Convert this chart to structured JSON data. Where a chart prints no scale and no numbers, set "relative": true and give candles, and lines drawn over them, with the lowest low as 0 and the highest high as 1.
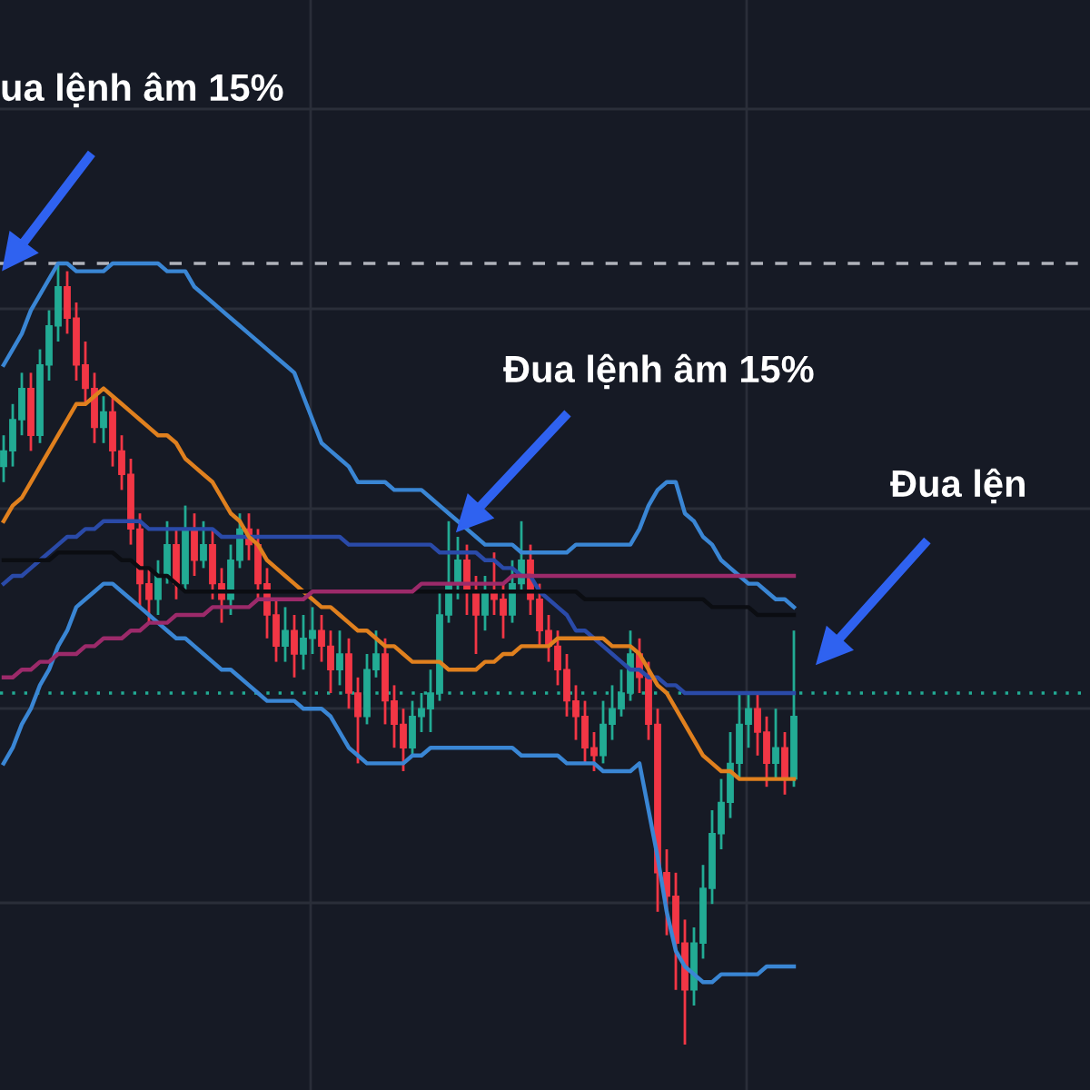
{
  "chart_data": {
    "type": "candlestick",
    "relative": true,
    "categories": [
      null,
      null,
      null,
      null,
      null,
      null,
      null,
      null,
      null,
      null,
      null,
      null,
      null,
      null,
      null,
      null,
      null,
      null,
      null,
      null,
      null,
      null,
      null,
      null,
      null,
      null,
      null,
      null,
      null,
      null,
      null,
      null,
      null,
      null,
      null,
      null,
      null,
      null,
      null,
      null,
      null,
      null,
      null,
      null,
      null,
      null,
      null,
      null,
      null,
      null,
      null,
      null,
      null,
      null,
      null,
      null,
      null,
      null,
      null,
      null,
      null,
      null,
      null,
      null,
      null,
      null,
      null,
      null,
      null,
      null,
      null,
      null,
      null,
      null,
      null,
      null,
      null,
      null,
      null,
      null,
      null,
      null,
      null,
      null,
      null,
      null,
      null,
      null
    ],
    "ohlc": [
      [
        0.74,
        0.78,
        0.72,
        0.76
      ],
      [
        0.76,
        0.82,
        0.74,
        0.8
      ],
      [
        0.8,
        0.86,
        0.78,
        0.84
      ],
      [
        0.84,
        0.86,
        0.76,
        0.78
      ],
      [
        0.78,
        0.89,
        0.77,
        0.87
      ],
      [
        0.87,
        0.94,
        0.85,
        0.92
      ],
      [
        0.92,
        1.0,
        0.9,
        0.97
      ],
      [
        0.97,
        0.99,
        0.91,
        0.93
      ],
      [
        0.93,
        0.95,
        0.85,
        0.87
      ],
      [
        0.87,
        0.9,
        0.82,
        0.84
      ],
      [
        0.84,
        0.86,
        0.77,
        0.79
      ],
      [
        0.79,
        0.83,
        0.77,
        0.81
      ],
      [
        0.81,
        0.83,
        0.74,
        0.76
      ],
      [
        0.76,
        0.78,
        0.71,
        0.73
      ],
      [
        0.73,
        0.75,
        0.64,
        0.66
      ],
      [
        0.66,
        0.68,
        0.56,
        0.59
      ],
      [
        0.59,
        0.61,
        0.54,
        0.57
      ],
      [
        0.57,
        0.62,
        0.55,
        0.6
      ],
      [
        0.6,
        0.67,
        0.59,
        0.64
      ],
      [
        0.64,
        0.66,
        0.57,
        0.59
      ],
      [
        0.59,
        0.69,
        0.58,
        0.66
      ],
      [
        0.66,
        0.68,
        0.6,
        0.62
      ],
      [
        0.62,
        0.67,
        0.61,
        0.64
      ],
      [
        0.64,
        0.66,
        0.57,
        0.59
      ],
      [
        0.59,
        0.61,
        0.54,
        0.57
      ],
      [
        0.57,
        0.64,
        0.55,
        0.62
      ],
      [
        0.62,
        0.68,
        0.61,
        0.66
      ],
      [
        0.66,
        0.68,
        0.62,
        0.64
      ],
      [
        0.64,
        0.66,
        0.57,
        0.59
      ],
      [
        0.59,
        0.61,
        0.52,
        0.55
      ],
      [
        0.55,
        0.57,
        0.49,
        0.51
      ],
      [
        0.51,
        0.56,
        0.49,
        0.53
      ],
      [
        0.53,
        0.55,
        0.47,
        0.5
      ],
      [
        0.5,
        0.55,
        0.48,
        0.52
      ],
      [
        0.52,
        0.56,
        0.5,
        0.53
      ],
      [
        0.53,
        0.55,
        0.49,
        0.51
      ],
      [
        0.51,
        0.53,
        0.45,
        0.48
      ],
      [
        0.48,
        0.53,
        0.46,
        0.5
      ],
      [
        0.5,
        0.52,
        0.43,
        0.45
      ],
      [
        0.45,
        0.47,
        0.36,
        0.42
      ],
      [
        0.42,
        0.5,
        0.41,
        0.48
      ],
      [
        0.48,
        0.53,
        0.47,
        0.5
      ],
      [
        0.5,
        0.52,
        0.41,
        0.44
      ],
      [
        0.44,
        0.46,
        0.38,
        0.41
      ],
      [
        0.41,
        0.43,
        0.35,
        0.38
      ],
      [
        0.38,
        0.44,
        0.37,
        0.42
      ],
      [
        0.42,
        0.45,
        0.4,
        0.43
      ],
      [
        0.43,
        0.48,
        0.4,
        0.45
      ],
      [
        0.45,
        0.58,
        0.44,
        0.55
      ],
      [
        0.55,
        0.67,
        0.54,
        0.59
      ],
      [
        0.59,
        0.65,
        0.57,
        0.62
      ],
      [
        0.62,
        0.64,
        0.55,
        0.58
      ],
      [
        0.58,
        0.6,
        0.5,
        0.55
      ],
      [
        0.55,
        0.6,
        0.53,
        0.58
      ],
      [
        0.58,
        0.63,
        0.55,
        0.57
      ],
      [
        0.57,
        0.59,
        0.52,
        0.55
      ],
      [
        0.55,
        0.62,
        0.54,
        0.59
      ],
      [
        0.59,
        0.67,
        0.58,
        0.62
      ],
      [
        0.62,
        0.64,
        0.55,
        0.57
      ],
      [
        0.57,
        0.59,
        0.51,
        0.53
      ],
      [
        0.53,
        0.55,
        0.49,
        0.51
      ],
      [
        0.51,
        0.53,
        0.46,
        0.48
      ],
      [
        0.48,
        0.5,
        0.42,
        0.44
      ],
      [
        0.44,
        0.46,
        0.39,
        0.42
      ],
      [
        0.42,
        0.44,
        0.36,
        0.38
      ],
      [
        0.38,
        0.4,
        0.35,
        0.37
      ],
      [
        0.37,
        0.44,
        0.36,
        0.41
      ],
      [
        0.41,
        0.46,
        0.39,
        0.43
      ],
      [
        0.43,
        0.48,
        0.42,
        0.45
      ],
      [
        0.45,
        0.53,
        0.44,
        0.5
      ],
      [
        0.5,
        0.52,
        0.45,
        0.47
      ],
      [
        0.47,
        0.49,
        0.39,
        0.41
      ],
      [
        0.41,
        0.43,
        0.17,
        0.22
      ],
      [
        0.22,
        0.25,
        0.14,
        0.19
      ],
      [
        0.19,
        0.22,
        0.07,
        0.13
      ],
      [
        0.13,
        0.16,
        0.0,
        0.07
      ],
      [
        0.07,
        0.15,
        0.05,
        0.13
      ],
      [
        0.13,
        0.23,
        0.11,
        0.2
      ],
      [
        0.2,
        0.3,
        0.18,
        0.27
      ],
      [
        0.27,
        0.34,
        0.25,
        0.31
      ],
      [
        0.31,
        0.4,
        0.29,
        0.36
      ],
      [
        0.36,
        0.45,
        0.34,
        0.41
      ],
      [
        0.41,
        0.45,
        0.38,
        0.43
      ],
      [
        0.43,
        0.45,
        0.37,
        0.4
      ],
      [
        0.4,
        0.42,
        0.33,
        0.36
      ],
      [
        0.36,
        0.43,
        0.34,
        0.38
      ],
      [
        0.38,
        0.4,
        0.32,
        0.34
      ],
      [
        0.34,
        0.53,
        0.33,
        0.42
      ]
    ],
    "colors": [
      "#22ab94",
      "#22ab94",
      "#22ab94",
      "#f23645",
      "#22ab94",
      "#22ab94",
      "#22ab94",
      "#f23645",
      "#f23645",
      "#f23645",
      "#f23645",
      "#22ab94",
      "#f23645",
      "#f23645",
      "#f23645",
      "#f23645",
      "#f23645",
      "#22ab94",
      "#22ab94",
      "#f23645",
      "#22ab94",
      "#f23645",
      "#22ab94",
      "#f23645",
      "#f23645",
      "#22ab94",
      "#22ab94",
      "#f23645",
      "#f23645",
      "#f23645",
      "#f23645",
      "#22ab94",
      "#f23645",
      "#22ab94",
      "#22ab94",
      "#f23645",
      "#f23645",
      "#22ab94",
      "#f23645",
      "#f23645",
      "#22ab94",
      "#22ab94",
      "#f23645",
      "#f23645",
      "#f23645",
      "#22ab94",
      "#22ab94",
      "#22ab94",
      "#22ab94",
      "#22ab94",
      "#22ab94",
      "#f23645",
      "#f23645",
      "#22ab94",
      "#f23645",
      "#f23645",
      "#22ab94",
      "#22ab94",
      "#f23645",
      "#f23645",
      "#f23645",
      "#f23645",
      "#f23645",
      "#f23645",
      "#f23645",
      "#f23645",
      "#22ab94",
      "#22ab94",
      "#22ab94",
      "#22ab94",
      "#f23645",
      "#f23645",
      "#f23645",
      "#f23645",
      "#f23645",
      "#f23645",
      "#22ab94",
      "#22ab94",
      "#22ab94",
      "#22ab94",
      "#22ab94",
      "#22ab94",
      "#22ab94",
      "#f23645",
      "#f23645",
      "#22ab94",
      "#f23645",
      "#22ab94"
    ],
    "series": [
      {
        "type": "line",
        "color": "#3a86d4",
        "values": [
          0.87,
          0.89,
          0.91,
          0.94,
          0.96,
          0.98,
          1.0,
          1.0,
          0.99,
          0.99,
          0.99,
          0.99,
          1.0,
          1.0,
          1.0,
          1.0,
          1.0,
          1.0,
          0.99,
          0.99,
          0.99,
          0.97,
          0.96,
          0.95,
          0.94,
          0.93,
          0.92,
          0.91,
          0.9,
          0.89,
          0.88,
          0.87,
          0.86,
          0.83,
          0.8,
          0.77,
          0.76,
          0.75,
          0.74,
          0.72,
          0.72,
          0.72,
          0.72,
          0.71,
          0.71,
          0.71,
          0.71,
          0.7,
          0.69,
          0.68,
          0.67,
          0.66,
          0.65,
          0.64,
          0.64,
          0.64,
          0.64,
          0.63,
          0.63,
          0.63,
          0.63,
          0.63,
          0.63,
          0.64,
          0.64,
          0.64,
          0.64,
          0.64,
          0.64,
          0.64,
          0.66,
          0.69,
          0.71,
          0.72,
          0.72,
          0.68,
          0.67,
          0.65,
          0.64,
          0.62,
          0.61,
          0.6,
          0.59,
          0.59,
          0.58,
          0.57,
          0.57,
          0.56
        ]
      },
      {
        "type": "line",
        "color": "#3a86d4",
        "values": [
          0.36,
          0.38,
          0.41,
          0.43,
          0.46,
          0.48,
          0.51,
          0.53,
          0.56,
          0.57,
          0.58,
          0.59,
          0.59,
          0.58,
          0.57,
          0.56,
          0.55,
          0.54,
          0.53,
          0.52,
          0.52,
          0.51,
          0.5,
          0.49,
          0.48,
          0.48,
          0.47,
          0.46,
          0.45,
          0.44,
          0.44,
          0.44,
          0.44,
          0.43,
          0.43,
          0.43,
          0.42,
          0.4,
          0.38,
          0.37,
          0.36,
          0.36,
          0.36,
          0.36,
          0.36,
          0.37,
          0.37,
          0.38,
          0.38,
          0.38,
          0.38,
          0.38,
          0.38,
          0.38,
          0.38,
          0.38,
          0.38,
          0.37,
          0.37,
          0.37,
          0.37,
          0.37,
          0.36,
          0.36,
          0.36,
          0.36,
          0.35,
          0.35,
          0.35,
          0.35,
          0.36,
          0.3,
          0.24,
          0.17,
          0.12,
          0.1,
          0.09,
          0.08,
          0.08,
          0.09,
          0.09,
          0.09,
          0.09,
          0.09,
          0.1,
          0.1,
          0.1,
          0.1
        ]
      },
      {
        "type": "line",
        "color": "#2a4aa8",
        "values": [
          0.59,
          0.6,
          0.6,
          0.61,
          0.62,
          0.63,
          0.64,
          0.65,
          0.65,
          0.66,
          0.66,
          0.67,
          0.67,
          0.67,
          0.67,
          0.67,
          0.66,
          0.66,
          0.66,
          0.66,
          0.66,
          0.66,
          0.66,
          0.66,
          0.65,
          0.65,
          0.65,
          0.65,
          0.65,
          0.65,
          0.65,
          0.65,
          0.65,
          0.65,
          0.65,
          0.65,
          0.65,
          0.65,
          0.64,
          0.64,
          0.64,
          0.64,
          0.64,
          0.64,
          0.64,
          0.64,
          0.64,
          0.64,
          0.63,
          0.63,
          0.63,
          0.63,
          0.63,
          0.62,
          0.62,
          0.61,
          0.61,
          0.6,
          0.6,
          0.58,
          0.57,
          0.56,
          0.55,
          0.53,
          0.53,
          0.52,
          0.51,
          0.5,
          0.49,
          0.48,
          0.48,
          0.47,
          0.47,
          0.46,
          0.46,
          0.45,
          0.45,
          0.45,
          0.45,
          0.45,
          0.45,
          0.45,
          0.45,
          0.45,
          0.45,
          0.45,
          0.45,
          0.45
        ]
      },
      {
        "type": "line",
        "color": "#e0801e",
        "values": [
          0.67,
          0.69,
          0.7,
          0.72,
          0.74,
          0.76,
          0.78,
          0.8,
          0.82,
          0.82,
          0.83,
          0.84,
          0.83,
          0.82,
          0.81,
          0.8,
          0.79,
          0.78,
          0.78,
          0.77,
          0.75,
          0.74,
          0.73,
          0.72,
          0.7,
          0.68,
          0.67,
          0.65,
          0.64,
          0.62,
          0.61,
          0.6,
          0.59,
          0.58,
          0.57,
          0.56,
          0.56,
          0.55,
          0.54,
          0.53,
          0.53,
          0.52,
          0.51,
          0.51,
          0.5,
          0.49,
          0.49,
          0.49,
          0.49,
          0.48,
          0.48,
          0.48,
          0.48,
          0.49,
          0.49,
          0.5,
          0.5,
          0.51,
          0.51,
          0.51,
          0.51,
          0.52,
          0.52,
          0.52,
          0.52,
          0.52,
          0.52,
          0.51,
          0.51,
          0.51,
          0.5,
          0.48,
          0.46,
          0.45,
          0.43,
          0.41,
          0.39,
          0.37,
          0.36,
          0.35,
          0.35,
          0.34,
          0.34,
          0.34,
          0.34,
          0.34,
          0.34,
          0.34
        ]
      },
      {
        "type": "line",
        "color": "#0b0d12",
        "values": [
          0.62,
          0.62,
          0.62,
          0.62,
          0.62,
          0.62,
          0.63,
          0.63,
          0.63,
          0.63,
          0.63,
          0.63,
          0.63,
          0.62,
          0.62,
          0.61,
          0.61,
          0.6,
          0.6,
          0.59,
          0.58,
          0.58,
          0.58,
          0.58,
          0.58,
          0.58,
          0.58,
          0.58,
          0.58,
          0.58,
          0.58,
          0.58,
          0.58,
          0.58,
          0.58,
          0.58,
          0.58,
          0.58,
          0.58,
          0.58,
          0.58,
          0.58,
          0.58,
          0.58,
          0.58,
          0.58,
          0.58,
          0.58,
          0.58,
          0.58,
          0.58,
          0.58,
          0.58,
          0.58,
          0.58,
          0.58,
          0.58,
          0.58,
          0.58,
          0.58,
          0.58,
          0.58,
          0.58,
          0.58,
          0.57,
          0.57,
          0.57,
          0.57,
          0.57,
          0.57,
          0.57,
          0.57,
          0.57,
          0.57,
          0.57,
          0.57,
          0.57,
          0.57,
          0.56,
          0.56,
          0.56,
          0.56,
          0.56,
          0.55,
          0.55,
          0.55,
          0.55,
          0.55
        ]
      },
      {
        "type": "line",
        "color": "#9c2a6a",
        "values": [
          0.47,
          0.47,
          0.48,
          0.48,
          0.49,
          0.49,
          0.5,
          0.5,
          0.5,
          0.51,
          0.51,
          0.52,
          0.52,
          0.52,
          0.53,
          0.53,
          0.54,
          0.54,
          0.54,
          0.55,
          0.55,
          0.55,
          0.55,
          0.56,
          0.56,
          0.56,
          0.56,
          0.56,
          0.57,
          0.57,
          0.57,
          0.57,
          0.57,
          0.57,
          0.58,
          0.58,
          0.58,
          0.58,
          0.58,
          0.58,
          0.58,
          0.58,
          0.58,
          0.58,
          0.58,
          0.58,
          0.59,
          0.59,
          0.59,
          0.59,
          0.59,
          0.59,
          0.59,
          0.59,
          0.59,
          0.59,
          0.6,
          0.6,
          0.6,
          0.6,
          0.6,
          0.6,
          0.6,
          0.6,
          0.6,
          0.6,
          0.6,
          0.6,
          0.6,
          0.6,
          0.6,
          0.6,
          0.6,
          0.6,
          0.6,
          0.6,
          0.6,
          0.6,
          0.6,
          0.6,
          0.6,
          0.6,
          0.6,
          0.6,
          0.6,
          0.6,
          0.6,
          0.6
        ]
      }
    ],
    "ref_lines": [
      {
        "axis": "y",
        "value": 1.0,
        "color": "#b0b3bb",
        "line_style": "dashed"
      },
      {
        "axis": "y",
        "value": 0.45,
        "color": "#22ab94",
        "line_style": "dotted"
      }
    ],
    "annotations": [
      "ua lệnh âm 15%",
      "Đua lệnh âm 15%",
      "Đua lện"
    ],
    "grid": true
  }
}
